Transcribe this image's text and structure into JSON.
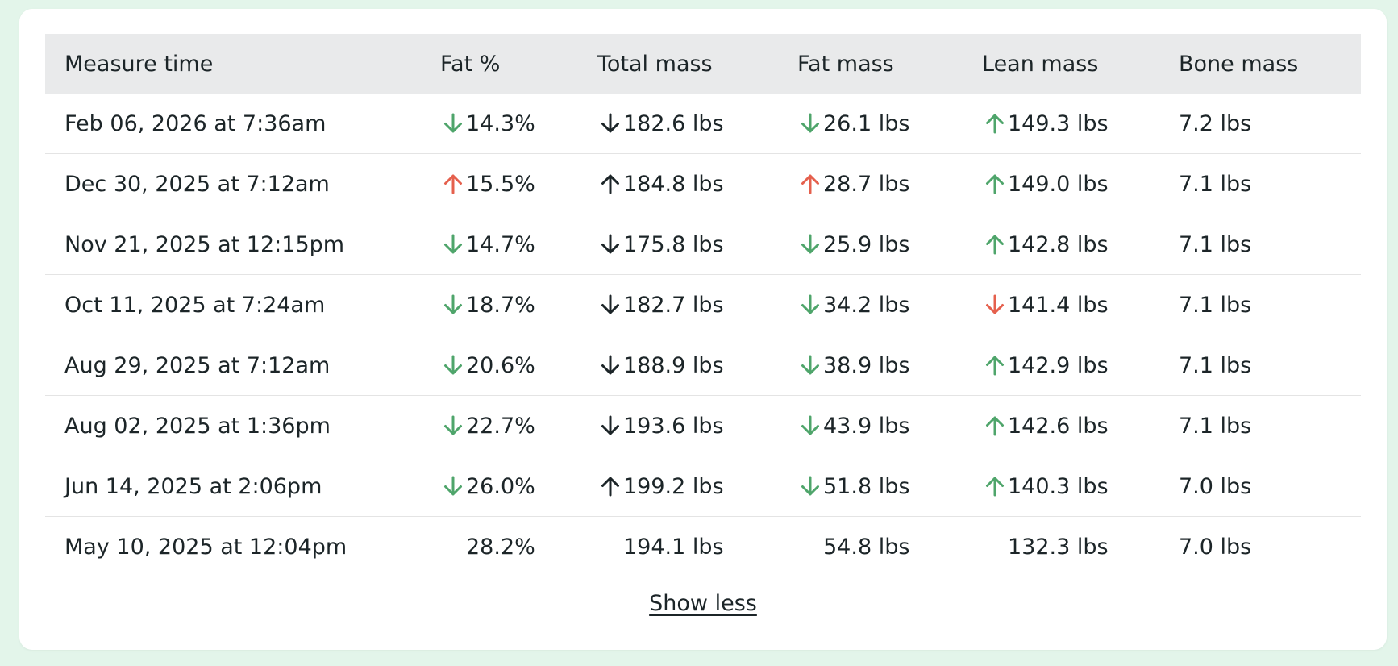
{
  "colors": {
    "green": "#4fa56b",
    "red": "#e5604d",
    "dark": "#1c2528"
  },
  "table": {
    "headers": [
      "Measure time",
      "Fat %",
      "Total mass",
      "Fat mass",
      "Lean mass",
      "Bone mass"
    ],
    "rows": [
      {
        "time": "Feb 06, 2026 at 7:36am",
        "fat_pct": {
          "value": "14.3%",
          "trend": "down",
          "color": "green"
        },
        "total_mass": {
          "value": "182.6 lbs",
          "trend": "down",
          "color": "dark"
        },
        "fat_mass": {
          "value": "26.1 lbs",
          "trend": "down",
          "color": "green"
        },
        "lean_mass": {
          "value": "149.3 lbs",
          "trend": "up",
          "color": "green"
        },
        "bone_mass": "7.2 lbs"
      },
      {
        "time": "Dec 30, 2025 at 7:12am",
        "fat_pct": {
          "value": "15.5%",
          "trend": "up",
          "color": "red"
        },
        "total_mass": {
          "value": "184.8 lbs",
          "trend": "up",
          "color": "dark"
        },
        "fat_mass": {
          "value": "28.7 lbs",
          "trend": "up",
          "color": "red"
        },
        "lean_mass": {
          "value": "149.0 lbs",
          "trend": "up",
          "color": "green"
        },
        "bone_mass": "7.1 lbs"
      },
      {
        "time": "Nov 21, 2025 at 12:15pm",
        "fat_pct": {
          "value": "14.7%",
          "trend": "down",
          "color": "green"
        },
        "total_mass": {
          "value": "175.8 lbs",
          "trend": "down",
          "color": "dark"
        },
        "fat_mass": {
          "value": "25.9 lbs",
          "trend": "down",
          "color": "green"
        },
        "lean_mass": {
          "value": "142.8 lbs",
          "trend": "up",
          "color": "green"
        },
        "bone_mass": "7.1 lbs"
      },
      {
        "time": "Oct 11, 2025 at 7:24am",
        "fat_pct": {
          "value": "18.7%",
          "trend": "down",
          "color": "green"
        },
        "total_mass": {
          "value": "182.7 lbs",
          "trend": "down",
          "color": "dark"
        },
        "fat_mass": {
          "value": "34.2 lbs",
          "trend": "down",
          "color": "green"
        },
        "lean_mass": {
          "value": "141.4 lbs",
          "trend": "down",
          "color": "red"
        },
        "bone_mass": "7.1 lbs"
      },
      {
        "time": "Aug 29, 2025 at 7:12am",
        "fat_pct": {
          "value": "20.6%",
          "trend": "down",
          "color": "green"
        },
        "total_mass": {
          "value": "188.9 lbs",
          "trend": "down",
          "color": "dark"
        },
        "fat_mass": {
          "value": "38.9 lbs",
          "trend": "down",
          "color": "green"
        },
        "lean_mass": {
          "value": "142.9 lbs",
          "trend": "up",
          "color": "green"
        },
        "bone_mass": "7.1 lbs"
      },
      {
        "time": "Aug 02, 2025 at 1:36pm",
        "fat_pct": {
          "value": "22.7%",
          "trend": "down",
          "color": "green"
        },
        "total_mass": {
          "value": "193.6 lbs",
          "trend": "down",
          "color": "dark"
        },
        "fat_mass": {
          "value": "43.9 lbs",
          "trend": "down",
          "color": "green"
        },
        "lean_mass": {
          "value": "142.6 lbs",
          "trend": "up",
          "color": "green"
        },
        "bone_mass": "7.1 lbs"
      },
      {
        "time": "Jun 14, 2025 at 2:06pm",
        "fat_pct": {
          "value": "26.0%",
          "trend": "down",
          "color": "green"
        },
        "total_mass": {
          "value": "199.2 lbs",
          "trend": "up",
          "color": "dark"
        },
        "fat_mass": {
          "value": "51.8 lbs",
          "trend": "down",
          "color": "green"
        },
        "lean_mass": {
          "value": "140.3 lbs",
          "trend": "up",
          "color": "green"
        },
        "bone_mass": "7.0 lbs"
      },
      {
        "time": "May 10, 2025 at 12:04pm",
        "fat_pct": {
          "value": "28.2%",
          "trend": "none",
          "color": "dark"
        },
        "total_mass": {
          "value": "194.1 lbs",
          "trend": "none",
          "color": "dark"
        },
        "fat_mass": {
          "value": "54.8 lbs",
          "trend": "none",
          "color": "dark"
        },
        "lean_mass": {
          "value": "132.3 lbs",
          "trend": "none",
          "color": "dark"
        },
        "bone_mass": "7.0 lbs"
      }
    ]
  },
  "footer": {
    "toggle_label": "Show less"
  }
}
